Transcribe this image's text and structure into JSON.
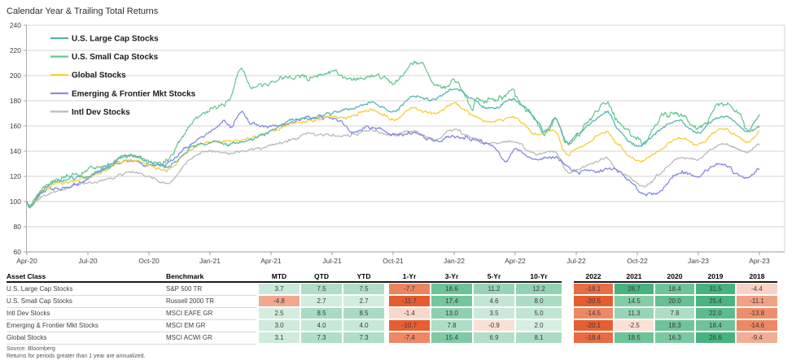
{
  "title": "Calendar Year & Trailing Total Returns",
  "chart_data": {
    "type": "line",
    "x_tick_labels": [
      "Apr-20",
      "Jul-20",
      "Oct-20",
      "Jan-21",
      "Apr-21",
      "Jul-21",
      "Oct-21",
      "Jan-22",
      "Apr-22",
      "Jul-22",
      "Oct-22",
      "Jan-23",
      "Apr-23"
    ],
    "y_ticks": [
      240,
      220,
      200,
      180,
      160,
      140,
      120,
      100,
      80,
      60
    ],
    "ylim": [
      60,
      240
    ],
    "months_span": 36,
    "grid": true,
    "legend_position": "top-left",
    "series": [
      {
        "name": "U.S. Large Cap Stocks",
        "color": "#52b7ac",
        "noise": 1.05,
        "points": [
          [
            0,
            100
          ],
          [
            0.12,
            95.5
          ],
          [
            1,
            112.8
          ],
          [
            2,
            118.2
          ],
          [
            3,
            120.5
          ],
          [
            4,
            127.3
          ],
          [
            5,
            136.5
          ],
          [
            6,
            131.3
          ],
          [
            7,
            127.8
          ],
          [
            8,
            141.8
          ],
          [
            9,
            147.2
          ],
          [
            10,
            145.7
          ],
          [
            11,
            149.8
          ],
          [
            12,
            156.3
          ],
          [
            13,
            164.7
          ],
          [
            14,
            165.8
          ],
          [
            15,
            169.7
          ],
          [
            16,
            173.7
          ],
          [
            17,
            179.0
          ],
          [
            18,
            170.7
          ],
          [
            19,
            182.6
          ],
          [
            20,
            181.4
          ],
          [
            21.05,
            190
          ],
          [
            22,
            179.7
          ],
          [
            23,
            174.3
          ],
          [
            24,
            180.8
          ],
          [
            25,
            165.0
          ],
          [
            25.5,
            155.5
          ],
          [
            26,
            165.3
          ],
          [
            26.5,
            147.5
          ],
          [
            27,
            151.7
          ],
          [
            28.55,
            171
          ],
          [
            29,
            158.9
          ],
          [
            30,
            144.3
          ],
          [
            31,
            156.0
          ],
          [
            32,
            164.7
          ],
          [
            33,
            155.2
          ],
          [
            34.05,
            168
          ],
          [
            35,
            161.0
          ],
          [
            35.4,
            155.5
          ],
          [
            36,
            166.9
          ]
        ]
      },
      {
        "name": "U.S. Small Cap Stocks",
        "color": "#67c692",
        "noise": 1.7,
        "points": [
          [
            0,
            100
          ],
          [
            0.12,
            96
          ],
          [
            1,
            113.7
          ],
          [
            2,
            121.1
          ],
          [
            3,
            125.4
          ],
          [
            4,
            128.9
          ],
          [
            5,
            136.1
          ],
          [
            6,
            131.6
          ],
          [
            7,
            134.3
          ],
          [
            8,
            159.1
          ],
          [
            9,
            172.8
          ],
          [
            10,
            181.5
          ],
          [
            10.5,
            204
          ],
          [
            11,
            192.8
          ],
          [
            12,
            194.7
          ],
          [
            13,
            198.8
          ],
          [
            14,
            199.3
          ],
          [
            15,
            203.1
          ],
          [
            16,
            195.8
          ],
          [
            17,
            200.2
          ],
          [
            18,
            194.3
          ],
          [
            19.25,
            211.5
          ],
          [
            20,
            194.1
          ],
          [
            20.6,
            190
          ],
          [
            21,
            198.4
          ],
          [
            21.9,
            172
          ],
          [
            22,
            179.3
          ],
          [
            23,
            181.2
          ],
          [
            23.95,
            187
          ],
          [
            24,
            183.5
          ],
          [
            25,
            165.3
          ],
          [
            25.4,
            155
          ],
          [
            26,
            165.5
          ],
          [
            26.5,
            147
          ],
          [
            27,
            151.9
          ],
          [
            28.5,
            178
          ],
          [
            29,
            164.4
          ],
          [
            30,
            148.6
          ],
          [
            30.4,
            146.5
          ],
          [
            31,
            165.0
          ],
          [
            32,
            168.8
          ],
          [
            33,
            157.9
          ],
          [
            34.05,
            177
          ],
          [
            35,
            170.4
          ],
          [
            35.45,
            157
          ],
          [
            36,
            162.2
          ]
        ]
      },
      {
        "name": "Global Stocks",
        "color": "#f5ce33",
        "noise": 1.0,
        "points": [
          [
            0,
            100
          ],
          [
            0.12,
            96
          ],
          [
            1,
            110.7
          ],
          [
            2,
            115.6
          ],
          [
            3,
            119.3
          ],
          [
            4,
            125.7
          ],
          [
            5,
            133.4
          ],
          [
            6,
            129.2
          ],
          [
            7,
            126.1
          ],
          [
            8,
            141.7
          ],
          [
            9,
            148.3
          ],
          [
            10,
            147.7
          ],
          [
            11,
            151.1
          ],
          [
            12,
            155.3
          ],
          [
            13,
            162.1
          ],
          [
            14,
            164.7
          ],
          [
            15,
            167.0
          ],
          [
            16,
            168.2
          ],
          [
            17,
            172.4
          ],
          [
            18,
            165.4
          ],
          [
            19,
            173.9
          ],
          [
            20,
            169.7
          ],
          [
            21.05,
            177.5
          ],
          [
            22,
            167.9
          ],
          [
            23,
            163.7
          ],
          [
            24,
            167.3
          ],
          [
            25,
            153.9
          ],
          [
            26,
            154.2
          ],
          [
            26.5,
            137.5
          ],
          [
            27,
            141.2
          ],
          [
            28.5,
            155
          ],
          [
            29,
            145.6
          ],
          [
            30,
            131.7
          ],
          [
            31,
            139.7
          ],
          [
            32,
            150.6
          ],
          [
            33,
            144.7
          ],
          [
            34.05,
            157
          ],
          [
            35,
            150.7
          ],
          [
            35.4,
            146
          ],
          [
            36,
            155.4
          ]
        ]
      },
      {
        "name": "Emerging & Frontier Mkt Stocks",
        "color": "#8287e0",
        "noise": 1.2,
        "points": [
          [
            0,
            100
          ],
          [
            0.12,
            97
          ],
          [
            1,
            109.2
          ],
          [
            2,
            110.0
          ],
          [
            3,
            118.1
          ],
          [
            4,
            128.7
          ],
          [
            5,
            131.6
          ],
          [
            6,
            129.5
          ],
          [
            7,
            132.2
          ],
          [
            8,
            144.5
          ],
          [
            9,
            155.2
          ],
          [
            9.6,
            164
          ],
          [
            10,
            160.0
          ],
          [
            10.55,
            171
          ],
          [
            11,
            161.2
          ],
          [
            12,
            158.8
          ],
          [
            13,
            162.7
          ],
          [
            14,
            166.5
          ],
          [
            15,
            166.8
          ],
          [
            16,
            155.6
          ],
          [
            17,
            159.7
          ],
          [
            18,
            153.3
          ],
          [
            19,
            155.0
          ],
          [
            20,
            148.5
          ],
          [
            21,
            151.3
          ],
          [
            22,
            148.4
          ],
          [
            23,
            144.0
          ],
          [
            23.5,
            131.5
          ],
          [
            24,
            140.8
          ],
          [
            25,
            132.9
          ],
          [
            26,
            133.4
          ],
          [
            27,
            124.6
          ],
          [
            28,
            124.4
          ],
          [
            29,
            124.9
          ],
          [
            30,
            110.3
          ],
          [
            30.8,
            104.5
          ],
          [
            31,
            106.9
          ],
          [
            32,
            122.7
          ],
          [
            33,
            121.0
          ],
          [
            34,
            130.6
          ],
          [
            35,
            122.1
          ],
          [
            35.5,
            119
          ],
          [
            36,
            125.8
          ]
        ]
      },
      {
        "name": "Intl Dev Stocks",
        "color": "#b9b9b9",
        "noise": 0.95,
        "points": [
          [
            0,
            100
          ],
          [
            0.12,
            97
          ],
          [
            1,
            106.5
          ],
          [
            2,
            110.8
          ],
          [
            3,
            114.6
          ],
          [
            4,
            117.3
          ],
          [
            5,
            123.4
          ],
          [
            6,
            120.2
          ],
          [
            7,
            115.4
          ],
          [
            8,
            133.3
          ],
          [
            9,
            139.6
          ],
          [
            10,
            138.1
          ],
          [
            11,
            141.2
          ],
          [
            12,
            144.6
          ],
          [
            13,
            149.1
          ],
          [
            14,
            154.0
          ],
          [
            15,
            152.3
          ],
          [
            16,
            153.5
          ],
          [
            17,
            156.3
          ],
          [
            18,
            151.9
          ],
          [
            19,
            155.7
          ],
          [
            20,
            148.5
          ],
          [
            21.05,
            157
          ],
          [
            22,
            148.6
          ],
          [
            23,
            146.0
          ],
          [
            24,
            147.0
          ],
          [
            25,
            137.6
          ],
          [
            26,
            138.7
          ],
          [
            26.5,
            124.5
          ],
          [
            27,
            125.8
          ],
          [
            28.5,
            134
          ],
          [
            29,
            125.9
          ],
          [
            30,
            114.2
          ],
          [
            30.4,
            112.5
          ],
          [
            31,
            120.4
          ],
          [
            32,
            134.0
          ],
          [
            33,
            134.1
          ],
          [
            34.1,
            146
          ],
          [
            35,
            141.9
          ],
          [
            35.4,
            138.5
          ],
          [
            36,
            145.5
          ]
        ]
      }
    ]
  },
  "table": {
    "asset_class_header": "Asset Class",
    "benchmark_header": "Benchmark",
    "period_headers": [
      "MTD",
      "QTD",
      "YTD",
      "1-Yr",
      "3-Yr",
      "5-Yr",
      "10-Yr"
    ],
    "year_headers": [
      "2022",
      "2021",
      "2020",
      "2019",
      "2018"
    ],
    "rows": [
      {
        "asset_class": "U.S. Large Cap Stocks",
        "benchmark": "S&P 500 TR",
        "periods": [
          3.7,
          7.5,
          7.5,
          -7.7,
          18.6,
          11.2,
          12.2
        ],
        "years": [
          -18.1,
          28.7,
          18.4,
          31.5,
          -4.4
        ]
      },
      {
        "asset_class": "U.S. Small Cap Stocks",
        "benchmark": "Russell 2000 TR",
        "periods": [
          -4.8,
          2.7,
          2.7,
          -11.7,
          17.4,
          4.6,
          8.0
        ],
        "years": [
          -20.5,
          14.5,
          20.0,
          25.4,
          -11.1
        ]
      },
      {
        "asset_class": "Intl Dev Stocks",
        "benchmark": "MSCI EAFE GR",
        "periods": [
          2.5,
          8.5,
          8.5,
          -1.4,
          13.0,
          3.5,
          5.0
        ],
        "years": [
          -14.5,
          11.3,
          7.8,
          22.0,
          -13.8
        ]
      },
      {
        "asset_class": "Emerging & Frontier Mkt Stocks",
        "benchmark": "MSCI EM GR",
        "periods": [
          3.0,
          4.0,
          4.0,
          -10.7,
          7.8,
          -0.9,
          2.0
        ],
        "years": [
          -20.1,
          -2.5,
          18.3,
          18.4,
          -14.6
        ]
      },
      {
        "asset_class": "Global Stocks",
        "benchmark": "MSCI ACWI GR",
        "periods": [
          3.1,
          7.3,
          7.3,
          -7.4,
          15.4,
          6.9,
          8.1
        ],
        "years": [
          -18.4,
          18.5,
          16.3,
          26.6,
          -9.4
        ]
      }
    ],
    "heatmap": {
      "positive_zero": "#edf7f1",
      "positive_max": "#45b37d",
      "positive_cap": 26,
      "negative_zero": "#fdf2ed",
      "negative_max": "#e65c2d",
      "negative_cap_periods": 11,
      "negative_cap_years": 20.5
    }
  },
  "footer": {
    "source": "Source: Bloomberg",
    "note": "Returns for periods greater than 1 year are annualized."
  }
}
